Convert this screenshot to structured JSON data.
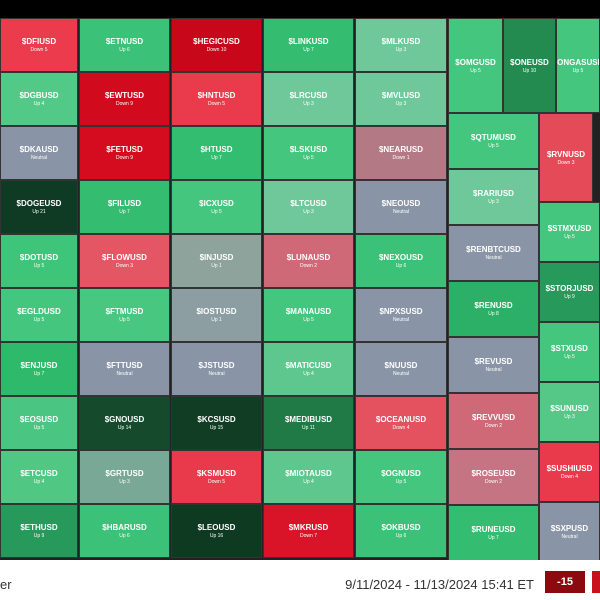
{
  "footer": {
    "label": "er",
    "range": "9/11/2024 - 11/13/2024 15:41 ET",
    "score": "-15"
  },
  "tiles": [
    [
      "$DFIUSD",
      "Down 5",
      "#ec3b4c"
    ],
    [
      "$DGBUSD",
      "Up 4",
      "#52c987"
    ],
    [
      "$DKAUSD",
      "Neutral",
      "#8994a6"
    ],
    [
      "$DOGEUSD",
      "Up 21",
      "#0f3b24"
    ],
    [
      "$DOTUSD",
      "Up 5",
      "#3fc57a"
    ],
    [
      "$EGLDUSD",
      "Up 5",
      "#45c67e"
    ],
    [
      "$ENJUSD",
      "Up 7",
      "#2fb96a"
    ],
    [
      "$EOSUSD",
      "Up 5",
      "#4bc682"
    ],
    [
      "$ETCUSD",
      "Up 4",
      "#50c884"
    ],
    [
      "$ETHUSD",
      "Up 9",
      "#27995a"
    ],
    [
      "$ETNUSD",
      "Up 6",
      "#3cc178"
    ],
    [
      "$EWTUSD",
      "Down 9",
      "#d10a1e"
    ],
    [
      "$FETUSD",
      "Down 9",
      "#d50c20"
    ],
    [
      "$FILUSD",
      "Up 7",
      "#34bd70"
    ],
    [
      "$FLOWUSD",
      "Down 3",
      "#e45664"
    ],
    [
      "$FTMUSD",
      "Up 5",
      "#47c780"
    ],
    [
      "$FTTUSD",
      "Neutral",
      "#8994a6"
    ],
    [
      "$GNOUSD",
      "Up 14",
      "#154b2c"
    ],
    [
      "$GRTUSD",
      "Up 3",
      "#79a897"
    ],
    [
      "$HBARUSD",
      "Up 6",
      "#3cc178"
    ],
    [
      "$HEGICUSD",
      "Down 10",
      "#c8081a"
    ],
    [
      "$HNTUSD",
      "Down 5",
      "#ea3b4c"
    ],
    [
      "$HTUSD",
      "Up 7",
      "#32bd70"
    ],
    [
      "$ICXUSD",
      "Up 5",
      "#45c67e"
    ],
    [
      "$INJUSD",
      "Up 1",
      "#8ea39c"
    ],
    [
      "$IOSTUSD",
      "Up 1",
      "#8d9ea2"
    ],
    [
      "$JSTUSD",
      "Neutral",
      "#8994a6"
    ],
    [
      "$KCSUSD",
      "Up 15",
      "#123d25"
    ],
    [
      "$KSMUSD",
      "Down 5",
      "#e83a4b"
    ],
    [
      "$LEOUSD",
      "Up 16",
      "#0f3a22"
    ],
    [
      "$LINKUSD",
      "Up 7",
      "#34bd70"
    ],
    [
      "$LRCUSD",
      "Up 3",
      "#6ec89a"
    ],
    [
      "$LSKUSD",
      "Up 5",
      "#45c67e"
    ],
    [
      "$LTCUSD",
      "Up 3",
      "#6ec89a"
    ],
    [
      "$LUNAUSD",
      "Down 2",
      "#cf6978"
    ],
    [
      "$MANAUSD",
      "Up 5",
      "#45c67e"
    ],
    [
      "$MATICUSD",
      "Up 4",
      "#5ec78e"
    ],
    [
      "$MEDIBUSD",
      "Up 11",
      "#1f7a46"
    ],
    [
      "$MIOTAUSD",
      "Up 4",
      "#5ec78e"
    ],
    [
      "$MKRUSD",
      "Down 7",
      "#da1428"
    ],
    [
      "$MLKUSD",
      "Up 3",
      "#6ec89a"
    ],
    [
      "$MVLUSD",
      "Up 3",
      "#6ec89a"
    ],
    [
      "$NEARUSD",
      "Down 1",
      "#b37a86"
    ],
    [
      "$NEOUSD",
      "Neutral",
      "#8994a6"
    ],
    [
      "$NEXOUSD",
      "Up 6",
      "#3cc178"
    ],
    [
      "$NPXSUSD",
      "Neutral",
      "#8994a6"
    ],
    [
      "$NUUSD",
      "Neutral",
      "#8994a6"
    ],
    [
      "$OCEANUSD",
      "Down 4",
      "#e4515f"
    ],
    [
      "$OGNUSD",
      "Up 5",
      "#45c67e"
    ],
    [
      "$OKBUSD",
      "Up 6",
      "#3cc178"
    ],
    [
      "$OMGUSD",
      "Up 5",
      "#45c67e"
    ],
    [
      "$ONEUSD",
      "Up 10",
      "#238a50"
    ],
    [
      "$ONGASUSD",
      "Up 5",
      "#45c67e"
    ],
    [
      "$QTUMUSD",
      "Up 5",
      "#45c67e"
    ],
    [
      "$RARIUSD",
      "Up 3",
      "#6ec89a"
    ],
    [
      "$RENBTCUSD",
      "Neutral",
      "#8994a6"
    ],
    [
      "$RENUSD",
      "Up 8",
      "#2cb068"
    ],
    [
      "$REVUSD",
      "Neutral",
      "#8994a6"
    ],
    [
      "$REVVUSD",
      "Down 2",
      "#cf6978"
    ],
    [
      "$ROSEUSD",
      "Down 2",
      "#c47482"
    ],
    [
      "$RUNEUSD",
      "Up 7",
      "#34bd70"
    ],
    [
      "$RVNUSD",
      "Down 3",
      "#e44a58"
    ],
    [
      "$STMXUSD",
      "Up 5",
      "#45c67e"
    ],
    [
      "$STORJUSD",
      "Up 9",
      "#27995a"
    ],
    [
      "$STXUSD",
      "Up 5",
      "#45c67e"
    ],
    [
      "$SUNUSD",
      "Up 3",
      "#55c888"
    ],
    [
      "$SUSHIUSD",
      "Down 4",
      "#e83a4b"
    ],
    [
      "$SXPUSD",
      "Neutral",
      "#8994a6"
    ]
  ]
}
